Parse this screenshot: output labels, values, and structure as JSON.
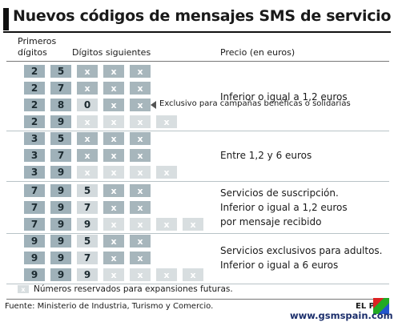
{
  "title": "Nuevos códigos de mensajes SMS de servicio",
  "headers": {
    "first_digits": [
      "Primeros",
      "dígitos"
    ],
    "next_digits": "Dígitos siguientes",
    "price": "Precio (en euros)"
  },
  "groups": [
    {
      "price": [
        "Inferior o igual a 1,2 euros"
      ],
      "rows": [
        {
          "digits": [
            "2",
            "5"
          ],
          "next": [
            "x",
            "x",
            "x"
          ],
          "reserved": []
        },
        {
          "digits": [
            "2",
            "7"
          ],
          "next": [
            "x",
            "x",
            "x"
          ],
          "reserved": []
        },
        {
          "digits": [
            "2",
            "8",
            "0"
          ],
          "next": [
            "x",
            "x"
          ],
          "reserved": [],
          "note": "Exclusivo para campañas benéficas o solidarias"
        },
        {
          "digits": [
            "2",
            "9"
          ],
          "next": [],
          "reserved": [
            "x",
            "x",
            "x",
            "x"
          ]
        }
      ]
    },
    {
      "price": [
        "Entre 1,2 y 6 euros"
      ],
      "rows": [
        {
          "digits": [
            "3",
            "5"
          ],
          "next": [
            "x",
            "x",
            "x"
          ],
          "reserved": []
        },
        {
          "digits": [
            "3",
            "7"
          ],
          "next": [
            "x",
            "x",
            "x"
          ],
          "reserved": []
        },
        {
          "digits": [
            "3",
            "9"
          ],
          "next": [],
          "reserved": [
            "x",
            "x",
            "x",
            "x"
          ]
        }
      ]
    },
    {
      "price": [
        "Servicios de suscripción.",
        "Inferior o igual a 1,2 euros",
        "por mensaje recibido"
      ],
      "rows": [
        {
          "digits": [
            "7",
            "9",
            "5"
          ],
          "next": [
            "x",
            "x"
          ],
          "reserved": []
        },
        {
          "digits": [
            "7",
            "9",
            "7"
          ],
          "next": [
            "x",
            "x"
          ],
          "reserved": []
        },
        {
          "digits": [
            "7",
            "9",
            "9"
          ],
          "next": [],
          "reserved": [
            "x",
            "x",
            "x",
            "x"
          ]
        }
      ]
    },
    {
      "price": [
        "Servicios exclusivos para adultos.",
        "Inferior o igual a 6 euros"
      ],
      "rows": [
        {
          "digits": [
            "9",
            "9",
            "5"
          ],
          "next": [
            "x",
            "x"
          ],
          "reserved": []
        },
        {
          "digits": [
            "9",
            "9",
            "7"
          ],
          "next": [
            "x",
            "x"
          ],
          "reserved": []
        },
        {
          "digits": [
            "9",
            "9",
            "9"
          ],
          "next": [],
          "reserved": [
            "x",
            "x",
            "x",
            "x"
          ]
        }
      ]
    }
  ],
  "legend": {
    "symbol": "x",
    "text": "Números reservados para expansiones futuras."
  },
  "footer": {
    "source": "Fuente: Ministerio de Industria, Turismo y Comercio.",
    "brand": "EL P",
    "watermark": "www.gsmspain.com"
  }
}
